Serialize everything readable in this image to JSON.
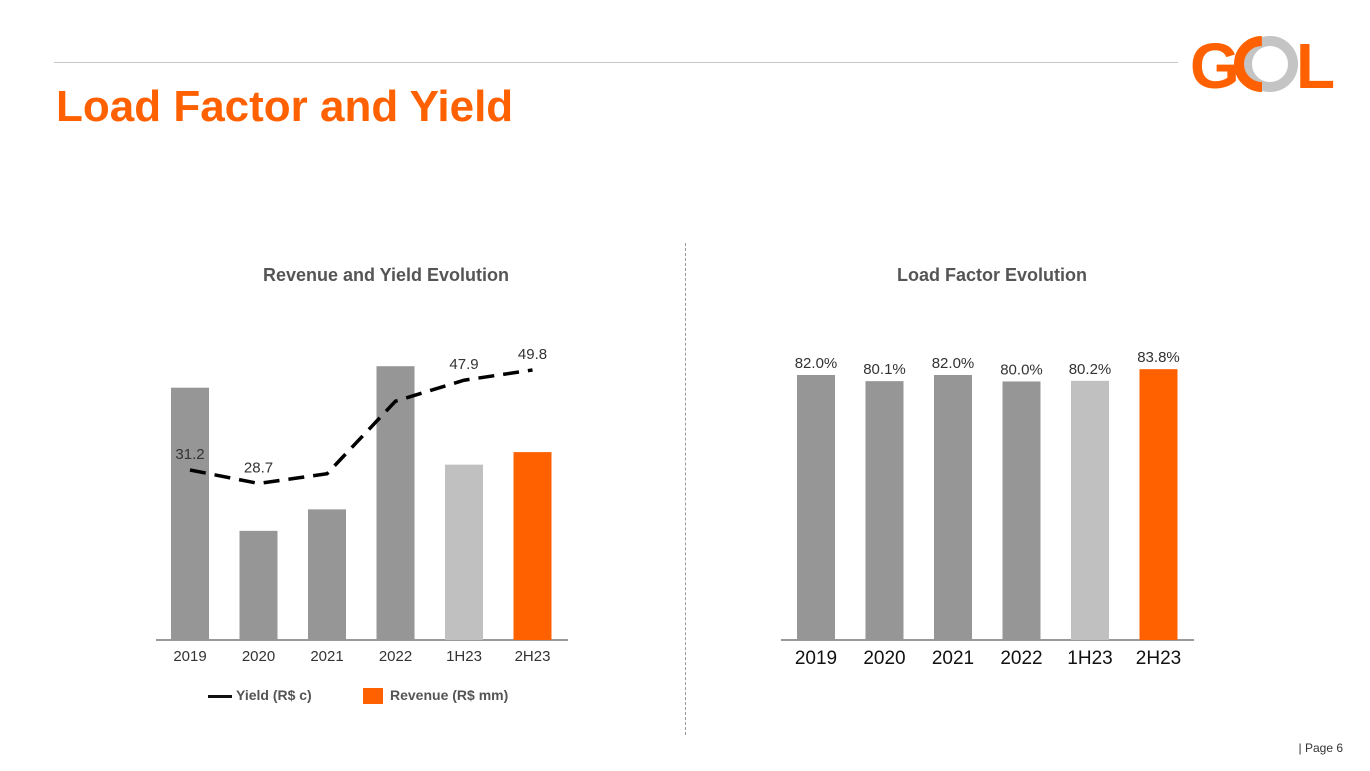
{
  "header": {
    "title": "Load Factor and Yield",
    "logo_text": "GOL",
    "page_label": "| Page 6"
  },
  "colors": {
    "accent": "#ff6000",
    "bar_dark": "#969696",
    "bar_light": "#c0c0c0",
    "line": "#000000"
  },
  "chart_data": [
    {
      "type": "bar",
      "title": "Revenue and Yield Evolution",
      "categories": [
        "2019",
        "2020",
        "2021",
        "2022",
        "1H23",
        "2H23"
      ],
      "bar_colors": [
        "#969696",
        "#969696",
        "#969696",
        "#969696",
        "#c0c0c0",
        "#ff6000"
      ],
      "series": [
        {
          "name": "Revenue (R$ mm)",
          "type": "bar",
          "values": [
            7050,
            3050,
            3650,
            7650,
            4900,
            5250
          ]
        },
        {
          "name": "Yield (R$ c)",
          "type": "line",
          "style": "dashed",
          "values": [
            31.2,
            28.7,
            30.5,
            44.0,
            47.9,
            49.8
          ],
          "labels": [
            "31.2",
            "28.7",
            "",
            "",
            "47.9",
            "49.8"
          ]
        }
      ],
      "legend": [
        "Yield (R$ c)",
        "Revenue (R$ mm)"
      ],
      "legend_placement": "bottom",
      "grid": false
    },
    {
      "type": "bar",
      "title": "Load Factor Evolution",
      "categories": [
        "2019",
        "2020",
        "2021",
        "2022",
        "1H23",
        "2H23"
      ],
      "values": [
        82.0,
        80.1,
        82.0,
        80.0,
        80.2,
        83.8
      ],
      "labels": [
        "82.0%",
        "80.1%",
        "82.0%",
        "80.0%",
        "80.2%",
        "83.8%"
      ],
      "bar_colors": [
        "#969696",
        "#969696",
        "#969696",
        "#969696",
        "#c0c0c0",
        "#ff6000"
      ],
      "grid": false
    }
  ]
}
